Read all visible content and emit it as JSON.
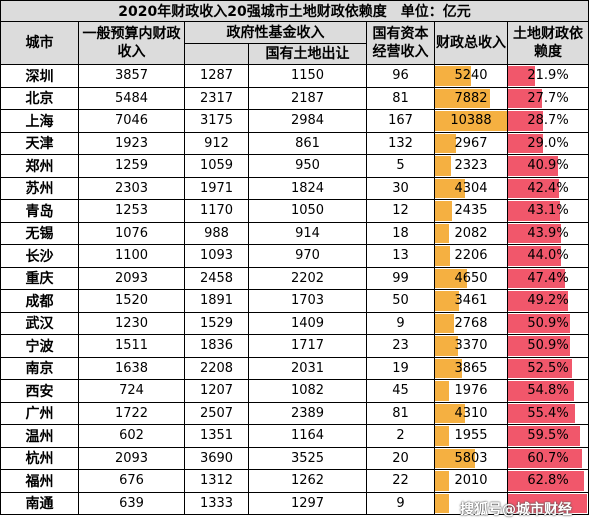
{
  "title": "2020年财政收入20强城市土地财政依赖度　单位：亿元",
  "headers": {
    "city": "城市",
    "general_budget": "一般预算内财政收入",
    "gov_fund": "政府性基金收入",
    "land_sale": "国有土地出让",
    "state_capital": "国有资本经营收入",
    "total": "财政总收入",
    "dependency": "土地财政依赖度"
  },
  "colors": {
    "total_bar": "#f5b041",
    "dependency_bar": "#f1576b",
    "header_bg": "#dcdcdc"
  },
  "rows": [
    {
      "city": "深圳",
      "general": "3857",
      "fund": "1287",
      "land": "1150",
      "capital": "96",
      "total": "5240",
      "total_value": 5240,
      "dep": "21.9%",
      "dep_value": 21.9
    },
    {
      "city": "北京",
      "general": "5484",
      "fund": "2317",
      "land": "2187",
      "capital": "81",
      "total": "7882",
      "total_value": 7882,
      "dep": "27.7%",
      "dep_value": 27.7
    },
    {
      "city": "上海",
      "general": "7046",
      "fund": "3175",
      "land": "2984",
      "capital": "167",
      "total": "10388",
      "total_value": 10388,
      "dep": "28.7%",
      "dep_value": 28.7
    },
    {
      "city": "天津",
      "general": "1923",
      "fund": "912",
      "land": "861",
      "capital": "132",
      "total": "2967",
      "total_value": 2967,
      "dep": "29.0%",
      "dep_value": 29.0
    },
    {
      "city": "郑州",
      "general": "1259",
      "fund": "1059",
      "land": "950",
      "capital": "5",
      "total": "2323",
      "total_value": 2323,
      "dep": "40.9%",
      "dep_value": 40.9
    },
    {
      "city": "苏州",
      "general": "2303",
      "fund": "1971",
      "land": "1824",
      "capital": "30",
      "total": "4304",
      "total_value": 4304,
      "dep": "42.4%",
      "dep_value": 42.4
    },
    {
      "city": "青岛",
      "general": "1253",
      "fund": "1170",
      "land": "1050",
      "capital": "12",
      "total": "2435",
      "total_value": 2435,
      "dep": "43.1%",
      "dep_value": 43.1
    },
    {
      "city": "无锡",
      "general": "1076",
      "fund": "988",
      "land": "914",
      "capital": "18",
      "total": "2082",
      "total_value": 2082,
      "dep": "43.9%",
      "dep_value": 43.9
    },
    {
      "city": "长沙",
      "general": "1100",
      "fund": "1093",
      "land": "970",
      "capital": "13",
      "total": "2206",
      "total_value": 2206,
      "dep": "44.0%",
      "dep_value": 44.0
    },
    {
      "city": "重庆",
      "general": "2093",
      "fund": "2458",
      "land": "2202",
      "capital": "99",
      "total": "4650",
      "total_value": 4650,
      "dep": "47.4%",
      "dep_value": 47.4
    },
    {
      "city": "成都",
      "general": "1520",
      "fund": "1891",
      "land": "1703",
      "capital": "50",
      "total": "3461",
      "total_value": 3461,
      "dep": "49.2%",
      "dep_value": 49.2
    },
    {
      "city": "武汉",
      "general": "1230",
      "fund": "1529",
      "land": "1409",
      "capital": "9",
      "total": "2768",
      "total_value": 2768,
      "dep": "50.9%",
      "dep_value": 50.9
    },
    {
      "city": "宁波",
      "general": "1511",
      "fund": "1836",
      "land": "1717",
      "capital": "23",
      "total": "3370",
      "total_value": 3370,
      "dep": "50.9%",
      "dep_value": 50.9
    },
    {
      "city": "南京",
      "general": "1638",
      "fund": "2208",
      "land": "2031",
      "capital": "19",
      "total": "3865",
      "total_value": 3865,
      "dep": "52.5%",
      "dep_value": 52.5
    },
    {
      "city": "西安",
      "general": "724",
      "fund": "1207",
      "land": "1082",
      "capital": "45",
      "total": "1976",
      "total_value": 1976,
      "dep": "54.8%",
      "dep_value": 54.8
    },
    {
      "city": "广州",
      "general": "1722",
      "fund": "2507",
      "land": "2389",
      "capital": "81",
      "total": "4310",
      "total_value": 4310,
      "dep": "55.4%",
      "dep_value": 55.4
    },
    {
      "city": "温州",
      "general": "602",
      "fund": "1351",
      "land": "1164",
      "capital": "2",
      "total": "1955",
      "total_value": 1955,
      "dep": "59.5%",
      "dep_value": 59.5
    },
    {
      "city": "杭州",
      "general": "2093",
      "fund": "3690",
      "land": "3525",
      "capital": "20",
      "total": "5803",
      "total_value": 5803,
      "dep": "60.7%",
      "dep_value": 60.7
    },
    {
      "city": "福州",
      "general": "676",
      "fund": "1312",
      "land": "1262",
      "capital": "22",
      "total": "2010",
      "total_value": 2010,
      "dep": "62.8%",
      "dep_value": 62.8
    },
    {
      "city": "南通",
      "general": "639",
      "fund": "1333",
      "land": "1297",
      "capital": "9",
      "total": "",
      "total_value": 1981,
      "dep": "",
      "dep_value": 65.5
    }
  ],
  "watermark": "搜狐号@城市财经"
}
